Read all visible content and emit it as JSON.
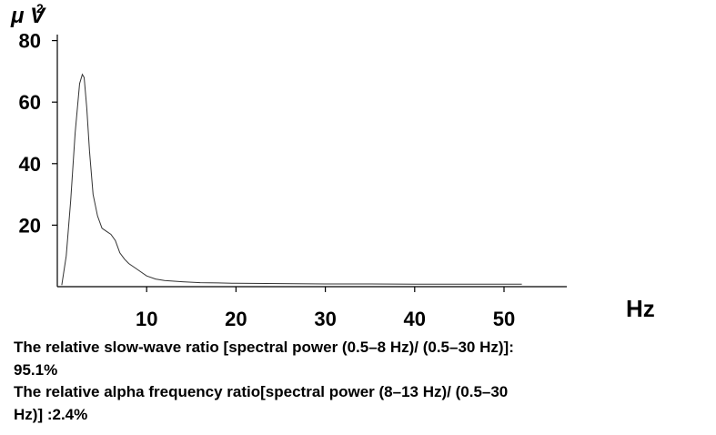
{
  "chart_data": {
    "type": "line",
    "title": "",
    "xlabel": "Hz",
    "ylabel_main": "μ V",
    "ylabel_sup": "2",
    "xlim": [
      0,
      57
    ],
    "ylim": [
      0,
      82
    ],
    "xticks": [
      10,
      20,
      30,
      40,
      50
    ],
    "yticks": [
      20,
      40,
      60,
      80
    ],
    "series": [
      {
        "x": [
          0.5,
          1,
          1.5,
          2,
          2.5,
          2.8,
          3,
          3.3,
          3.6,
          4,
          4.5,
          5,
          5.5,
          6,
          6.5,
          7,
          7.5,
          8,
          9,
          10,
          11,
          12,
          14,
          16,
          18,
          20,
          25,
          30,
          35,
          40,
          45,
          50,
          52
        ],
        "y": [
          0.5,
          10,
          28,
          50,
          66,
          69,
          68,
          58,
          44,
          30,
          23,
          19,
          18,
          17,
          15,
          11,
          9,
          7.5,
          5.5,
          3.5,
          2.5,
          2.0,
          1.6,
          1.3,
          1.2,
          1.1,
          1.0,
          0.9,
          0.9,
          0.8,
          0.8,
          0.8,
          0.8
        ]
      }
    ]
  },
  "caption": {
    "line1": "The relative slow-wave ratio [spectral power (0.5–8 Hz)/ (0.5–30 Hz)]:",
    "line2": "95.1%",
    "line3": "The relative alpha frequency ratio[spectral power (8–13 Hz)/ (0.5–30",
    "line4": "Hz)] :2.4%"
  }
}
